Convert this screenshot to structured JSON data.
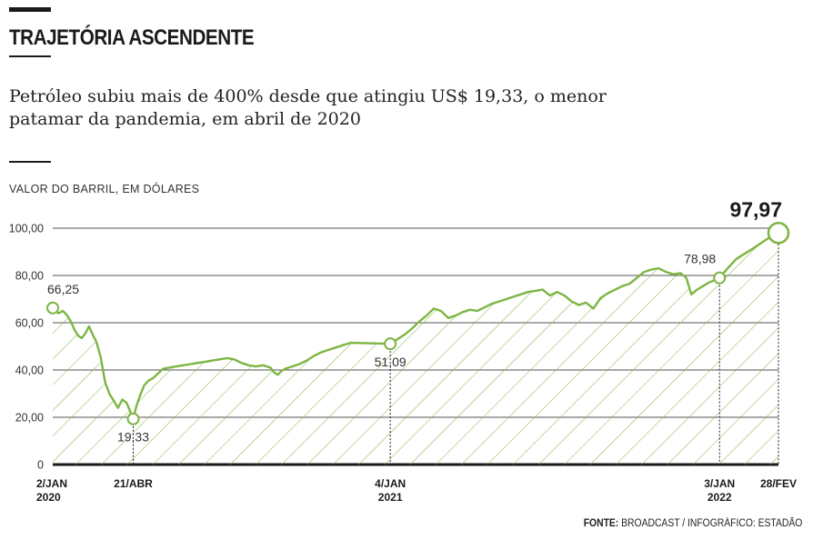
{
  "header": {
    "title": "TRAJETÓRIA ASCENDENTE",
    "subtitle": "Petróleo subiu mais de 400% desde que atingiu US$ 19,33, o menor patamar da pandemia, em abril de 2020",
    "unit_label": "VALOR DO BARRIL, EM DÓLARES"
  },
  "source": {
    "label": "FONTE:",
    "text": "BROADCAST / INFOGRÁFICO: ESTADÃO"
  },
  "colors": {
    "line": "#7db543",
    "hatch": "#7db543",
    "grid": "#1a1a1a",
    "text": "#1a1a1a"
  },
  "chart_data": {
    "type": "area",
    "title": "TRAJETÓRIA ASCENDENTE",
    "ylabel": "VALOR DO BARRIL, EM DÓLARES",
    "ylim": [
      0,
      100
    ],
    "yticks": [
      "0",
      "20,00",
      "40,00",
      "60,00",
      "80,00",
      "100,00"
    ],
    "grid": true,
    "xticks": [
      {
        "label": [
          "2/JAN",
          "2020"
        ],
        "t": 0
      },
      {
        "label": [
          "21/ABR"
        ],
        "t": 0.1109
      },
      {
        "label": [
          "4/JAN",
          "2021"
        ],
        "t": 0.4651
      },
      {
        "label": [
          "3/JAN",
          "2022"
        ],
        "t": 0.9188
      },
      {
        "label": [
          "28/FEV"
        ],
        "t": 1
      }
    ],
    "series": [
      {
        "values": [
          [
            0.0,
            66.25
          ],
          [
            0.008,
            64.0
          ],
          [
            0.014,
            65.0
          ],
          [
            0.02,
            63.0
          ],
          [
            0.025,
            60.5
          ],
          [
            0.03,
            57.0
          ],
          [
            0.035,
            54.5
          ],
          [
            0.04,
            53.5
          ],
          [
            0.045,
            55.5
          ],
          [
            0.05,
            58.5
          ],
          [
            0.055,
            55.0
          ],
          [
            0.06,
            52.0
          ],
          [
            0.066,
            45.5
          ],
          [
            0.072,
            35.0
          ],
          [
            0.078,
            30.0
          ],
          [
            0.084,
            27.0
          ],
          [
            0.09,
            24.0
          ],
          [
            0.096,
            27.5
          ],
          [
            0.102,
            26.0
          ],
          [
            0.106,
            23.0
          ],
          [
            0.1109,
            19.33
          ],
          [
            0.115,
            24.5
          ],
          [
            0.12,
            29.0
          ],
          [
            0.126,
            33.5
          ],
          [
            0.132,
            35.5
          ],
          [
            0.138,
            36.5
          ],
          [
            0.145,
            38.5
          ],
          [
            0.152,
            40.5
          ],
          [
            0.16,
            41.0
          ],
          [
            0.17,
            41.5
          ],
          [
            0.18,
            42.0
          ],
          [
            0.19,
            42.5
          ],
          [
            0.2,
            43.0
          ],
          [
            0.21,
            43.5
          ],
          [
            0.22,
            44.0
          ],
          [
            0.23,
            44.5
          ],
          [
            0.24,
            45.0
          ],
          [
            0.25,
            44.5
          ],
          [
            0.26,
            43.0
          ],
          [
            0.27,
            42.0
          ],
          [
            0.28,
            41.5
          ],
          [
            0.29,
            42.0
          ],
          [
            0.3,
            41.0
          ],
          [
            0.305,
            39.0
          ],
          [
            0.31,
            38.0
          ],
          [
            0.315,
            39.5
          ],
          [
            0.32,
            40.5
          ],
          [
            0.33,
            41.5
          ],
          [
            0.34,
            42.5
          ],
          [
            0.35,
            44.0
          ],
          [
            0.36,
            46.0
          ],
          [
            0.37,
            47.5
          ],
          [
            0.38,
            48.5
          ],
          [
            0.39,
            49.5
          ],
          [
            0.4,
            50.5
          ],
          [
            0.41,
            51.5
          ],
          [
            0.4651,
            51.09
          ],
          [
            0.475,
            53.0
          ],
          [
            0.485,
            55.0
          ],
          [
            0.495,
            57.5
          ],
          [
            0.505,
            60.5
          ],
          [
            0.515,
            63.0
          ],
          [
            0.525,
            66.0
          ],
          [
            0.535,
            65.0
          ],
          [
            0.545,
            62.0
          ],
          [
            0.555,
            63.0
          ],
          [
            0.565,
            64.5
          ],
          [
            0.575,
            65.5
          ],
          [
            0.585,
            65.0
          ],
          [
            0.595,
            66.5
          ],
          [
            0.605,
            68.0
          ],
          [
            0.615,
            69.0
          ],
          [
            0.625,
            70.0
          ],
          [
            0.635,
            71.0
          ],
          [
            0.645,
            72.0
          ],
          [
            0.655,
            73.0
          ],
          [
            0.665,
            73.5
          ],
          [
            0.675,
            74.0
          ],
          [
            0.685,
            71.5
          ],
          [
            0.695,
            73.0
          ],
          [
            0.705,
            71.5
          ],
          [
            0.715,
            69.0
          ],
          [
            0.725,
            67.5
          ],
          [
            0.735,
            68.5
          ],
          [
            0.745,
            66.0
          ],
          [
            0.755,
            70.5
          ],
          [
            0.765,
            72.5
          ],
          [
            0.775,
            74.0
          ],
          [
            0.785,
            75.5
          ],
          [
            0.795,
            76.5
          ],
          [
            0.805,
            79.0
          ],
          [
            0.815,
            81.5
          ],
          [
            0.825,
            82.5
          ],
          [
            0.835,
            83.0
          ],
          [
            0.845,
            81.5
          ],
          [
            0.855,
            80.5
          ],
          [
            0.865,
            81.0
          ],
          [
            0.873,
            79.0
          ],
          [
            0.88,
            72.0
          ],
          [
            0.888,
            74.0
          ],
          [
            0.896,
            75.5
          ],
          [
            0.904,
            77.0
          ],
          [
            0.912,
            78.0
          ],
          [
            0.9188,
            78.98
          ],
          [
            0.93,
            83.0
          ],
          [
            0.942,
            87.0
          ],
          [
            0.955,
            89.5
          ],
          [
            0.968,
            92.0
          ],
          [
            0.98,
            94.5
          ],
          [
            0.99,
            96.5
          ],
          [
            1.0,
            97.97
          ]
        ]
      }
    ],
    "annotations": [
      {
        "t": 0,
        "value": 66.25,
        "label": "66,25",
        "anchor": "above",
        "dash": false
      },
      {
        "t": 0.1109,
        "value": 19.33,
        "label": "19,33",
        "anchor": "below",
        "dash": true
      },
      {
        "t": 0.4651,
        "value": 51.09,
        "label": "51,09",
        "anchor": "below",
        "dash": true
      },
      {
        "t": 0.9188,
        "value": 78.98,
        "label": "78,98",
        "anchor": "above-left",
        "dash": true
      },
      {
        "t": 1,
        "value": 97.97,
        "label": "97,97",
        "anchor": "big",
        "dash": true
      }
    ]
  }
}
